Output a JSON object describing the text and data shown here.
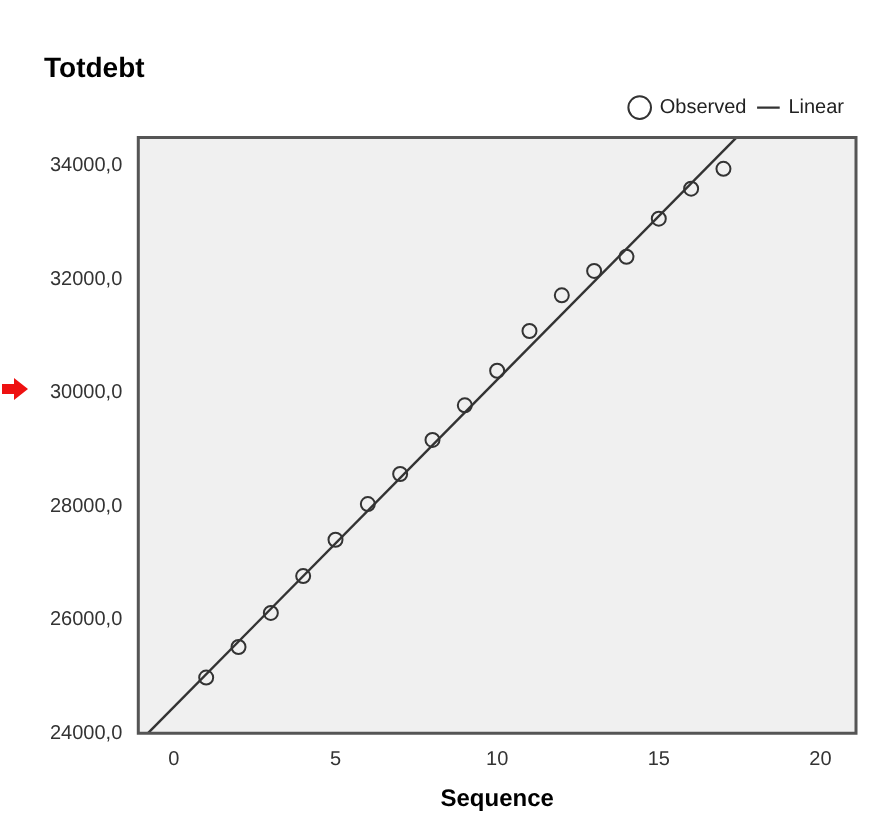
{
  "chart_data": {
    "type": "scatter",
    "title": "Totdebt",
    "xlabel": "Sequence",
    "xlim": [
      -1.1,
      21.1
    ],
    "xticks": [
      0,
      5,
      10,
      15,
      20
    ],
    "ylim": [
      24000,
      34500
    ],
    "yticks": [
      {
        "value": 24000,
        "label": "24000,0"
      },
      {
        "value": 26000,
        "label": "26000,0"
      },
      {
        "value": 28000,
        "label": "28000,0"
      },
      {
        "value": 30000,
        "label": "30000,0"
      },
      {
        "value": 32000,
        "label": "32000,0"
      },
      {
        "value": 34000,
        "label": "34000,0"
      }
    ],
    "grid": false,
    "legend": "top right",
    "series": [
      {
        "name": "Observed",
        "type": "scatter",
        "marker": "circle",
        "color": "#333333",
        "x": [
          1,
          2,
          3,
          4,
          5,
          6,
          7,
          8,
          9,
          10,
          11,
          12,
          13,
          14,
          15,
          16,
          17
        ],
        "values": [
          24980,
          25520,
          26120,
          26770,
          27410,
          28040,
          28570,
          29170,
          29780,
          30390,
          31090,
          31720,
          32150,
          32400,
          33070,
          33600,
          33950
        ]
      },
      {
        "name": "Linear",
        "type": "line",
        "marker": "none",
        "line_style": "solid",
        "color": "#333333",
        "x": [
          -0.8,
          17.4
        ],
        "values": [
          24000,
          34500
        ]
      }
    ]
  }
}
